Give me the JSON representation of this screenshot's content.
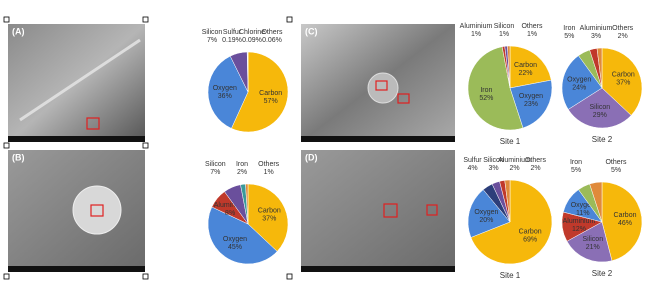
{
  "chart_data": [
    {
      "type": "pie",
      "panel": "(A)",
      "categories": [
        "Carbon",
        "Oxygen",
        "Silicon",
        "Sulfur",
        "Chlorine",
        "Others"
      ],
      "values": [
        57,
        36,
        7,
        0.19,
        0.09,
        0.06
      ],
      "value_labels": [
        "57%",
        "36%",
        "7%",
        "0.19%",
        "0.09%",
        "0.06%"
      ],
      "colors": [
        "#f6b80b",
        "#4a86d8",
        "#6a4f9c",
        "#3b4a8a",
        "#c0392b",
        "#8a8a8a"
      ]
    },
    {
      "type": "pie",
      "panel": "(B)",
      "categories": [
        "Carbon",
        "Oxygen",
        "Aluminium",
        "Silicon",
        "Iron",
        "Others"
      ],
      "values": [
        37,
        45,
        8,
        7,
        2,
        1
      ],
      "value_labels": [
        "37%",
        "45%",
        "8%",
        "7%",
        "2%",
        "1%"
      ],
      "colors": [
        "#f6b80b",
        "#4a86d8",
        "#c0392b",
        "#6a4f9c",
        "#3a9a9a",
        "#e08a3a"
      ]
    },
    {
      "type": "pie",
      "panel": "(C)",
      "label": "Site 1",
      "categories": [
        "Carbon",
        "Oxygen",
        "Iron",
        "Aluminium",
        "Silicon",
        "Others"
      ],
      "values": [
        22,
        23,
        52,
        1,
        1,
        1
      ],
      "value_labels": [
        "22%",
        "23%",
        "52%",
        "1%",
        "1%",
        "1%"
      ],
      "colors": [
        "#f6b80b",
        "#4a86d8",
        "#9bbb59",
        "#c0392b",
        "#6a4f9c",
        "#e08a3a"
      ]
    },
    {
      "type": "pie",
      "label": "Site 2",
      "categories": [
        "Carbon",
        "Silicon",
        "Oxygen",
        "Iron",
        "Aluminium",
        "Others"
      ],
      "values": [
        37,
        29,
        24,
        5,
        3,
        2
      ],
      "value_labels": [
        "37%",
        "29%",
        "24%",
        "5%",
        "3%",
        "2%"
      ],
      "colors": [
        "#f6b80b",
        "#8a6fb5",
        "#4a86d8",
        "#9bbb59",
        "#c0392b",
        "#e08a3a"
      ]
    },
    {
      "type": "pie",
      "panel": "(D)",
      "label": "Site 1",
      "categories": [
        "Carbon",
        "Oxygen",
        "Sulfur",
        "Silicon",
        "Aluminium",
        "Others"
      ],
      "values": [
        69,
        20,
        4,
        3,
        2,
        2
      ],
      "value_labels": [
        "69%",
        "20%",
        "4%",
        "3%",
        "2%",
        "2%"
      ],
      "colors": [
        "#f6b80b",
        "#4a86d8",
        "#2c3e7a",
        "#6a4f9c",
        "#c0392b",
        "#e08a3a"
      ]
    },
    {
      "type": "pie",
      "label": "Site 2",
      "categories": [
        "Carbon",
        "Silicon",
        "Aluminium",
        "Oxygen",
        "Iron",
        "Others"
      ],
      "values": [
        46,
        21,
        12,
        11,
        5,
        5
      ],
      "value_labels": [
        "46%",
        "21%",
        "12%",
        "11%",
        "5%",
        "5%"
      ],
      "colors": [
        "#f6b80b",
        "#8a6fb5",
        "#c0392b",
        "#4a86d8",
        "#9bbb59",
        "#e08a3a"
      ]
    }
  ]
}
